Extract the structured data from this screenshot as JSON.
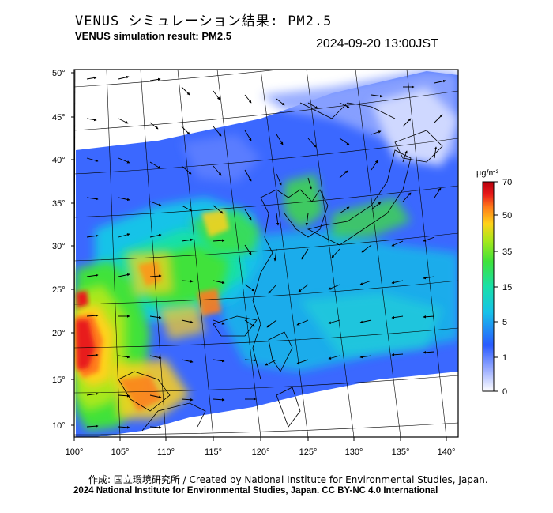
{
  "header": {
    "title_jp": "VENUS シミュレーション結果: PM2.5",
    "title_en": "VENUS simulation result: PM2.5",
    "timestamp": "2024-09-20 13:00JST"
  },
  "map": {
    "lat_labels": [
      "50°",
      "45°",
      "40°",
      "35°",
      "30°",
      "25°",
      "20°",
      "15°",
      "10°"
    ],
    "lon_labels": [
      "100°",
      "105°",
      "110°",
      "115°",
      "120°",
      "125°",
      "130°",
      "135°",
      "140°"
    ]
  },
  "colorbar": {
    "unit": "µg/m³",
    "tick_labels": [
      "70",
      "50",
      "35",
      "15",
      "5",
      "1",
      "0"
    ],
    "colors": [
      "#ffffff",
      "#9fb0ff",
      "#2a5bff",
      "#16c3e8",
      "#18e0a8",
      "#3fe23a",
      "#a8e81b",
      "#ffd21a",
      "#ff7a1a",
      "#e81a1a",
      "#b8000c"
    ]
  },
  "footer": {
    "credit": "作成: 国立環境研究所 / Created by National Institute for Environmental Studies, Japan.",
    "copyright": "2024 National Institute for Environmental Studies, Japan. CC BY-NC 4.0 International"
  }
}
